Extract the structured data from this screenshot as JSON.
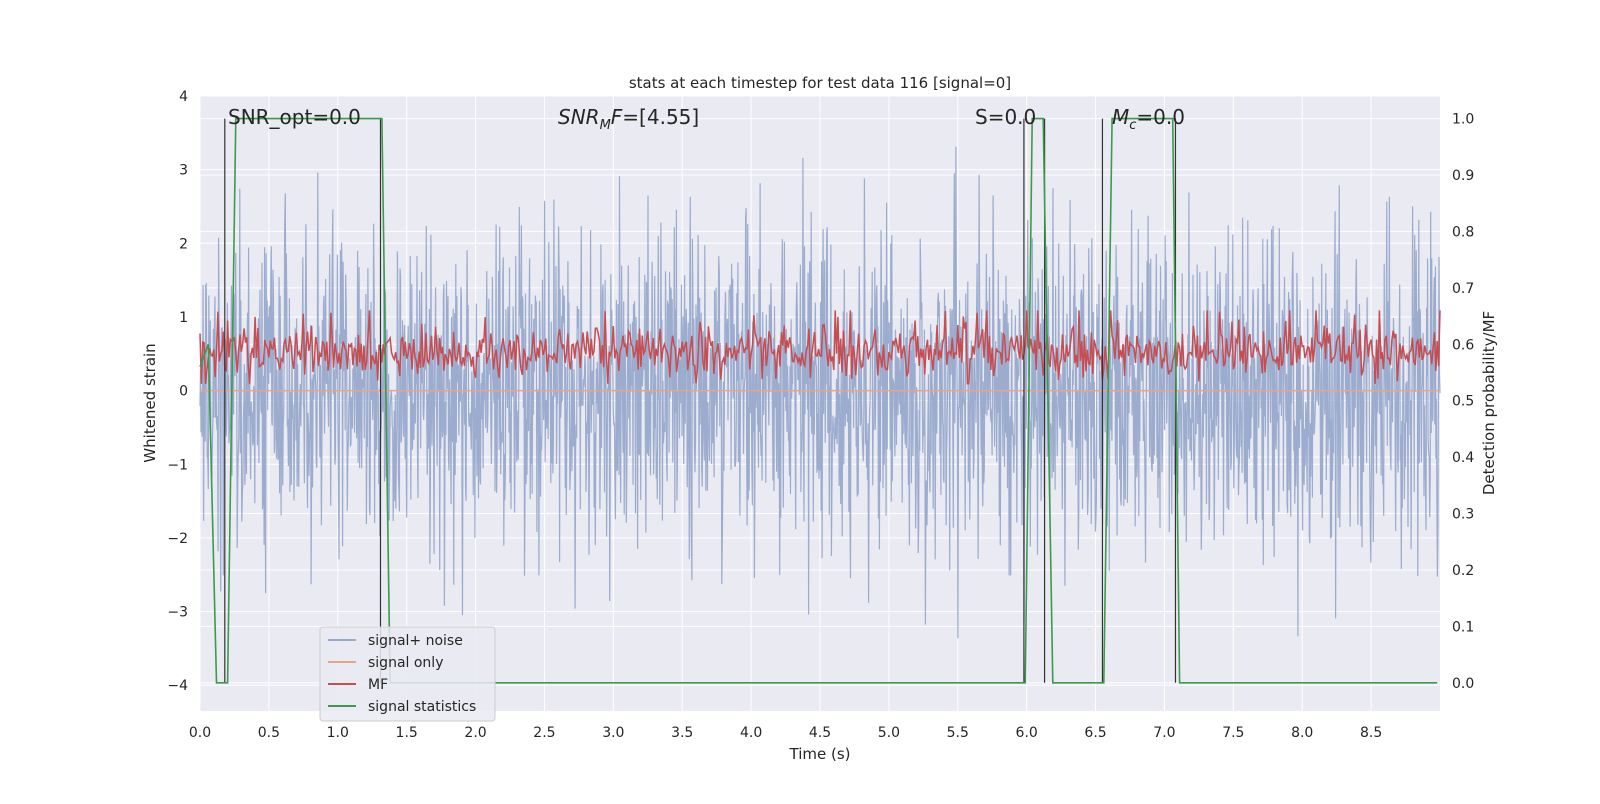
{
  "chart_data": {
    "type": "line",
    "title": "stats at each timestep for test data 116 [signal=0]",
    "xlabel": "Time (s)",
    "ylabel_left": "Whitened strain",
    "ylabel_right": "Detection probability/MF",
    "xlim": [
      0.0,
      9.0
    ],
    "ylim_left": [
      -4.35,
      4.0
    ],
    "ylim_right": [
      -0.05,
      1.04
    ],
    "x_ticks": [
      "0.0",
      "0.5",
      "1.0",
      "1.5",
      "2.0",
      "2.5",
      "3.0",
      "3.5",
      "4.0",
      "4.5",
      "5.0",
      "5.5",
      "6.0",
      "6.5",
      "7.0",
      "7.5",
      "8.0",
      "8.5"
    ],
    "y_left_ticks": [
      "4",
      "3",
      "2",
      "1",
      "0",
      "−1",
      "−2",
      "−3",
      "−4"
    ],
    "y_left_tick_values": [
      4,
      3,
      2,
      1,
      0,
      -1,
      -2,
      -3,
      -4
    ],
    "y_right_ticks": [
      "1.0",
      "0.9",
      "0.8",
      "0.7",
      "0.6",
      "0.5",
      "0.4",
      "0.3",
      "0.2",
      "0.1",
      "0.0"
    ],
    "y_right_tick_values": [
      1.0,
      0.9,
      0.8,
      0.7,
      0.6,
      0.5,
      0.4,
      0.3,
      0.2,
      0.1,
      0.0
    ],
    "annotations": {
      "snr_opt": "SNR_opt=0.0",
      "snr_mf": "=[4.55]",
      "snr_mf_base": "SNR",
      "snr_mf_sub": "M",
      "snr_mf_tail": "F",
      "s": "S=0.0",
      "mc_base": "M",
      "mc_sub": "c",
      "mc_tail": "=0.0"
    },
    "grid": true,
    "legend_position": "lower-left",
    "series": [
      {
        "name": "signal+ noise",
        "color": "#97a9cc",
        "axis": "left",
        "description_values": "noise, amplitude roughly within [-4, 3.6]"
      },
      {
        "name": "signal only",
        "color": "#e8a48a",
        "axis": "left",
        "values_constant": 0.0
      },
      {
        "name": "MF",
        "color": "#c44e52",
        "axis": "right",
        "range": [
          0.53,
          0.66
        ]
      },
      {
        "name": "signal statistics",
        "color": "#3d9a4d",
        "axis": "right",
        "x": [
          0.0,
          0.06,
          0.12,
          0.2,
          0.26,
          1.32,
          1.38,
          1.4,
          5.99,
          6.04,
          6.12,
          6.19,
          6.56,
          6.62,
          7.06,
          7.11,
          8.98
        ],
        "y": [
          0.56,
          0.6,
          0.0,
          0.0,
          1.0,
          1.0,
          0.0,
          0.0,
          0.0,
          1.0,
          1.0,
          0.0,
          0.0,
          1.0,
          1.0,
          0.0,
          0.0
        ]
      }
    ],
    "vertical_markers_x": [
      0.18,
      1.31,
      5.98,
      6.13,
      6.55,
      7.08
    ]
  }
}
